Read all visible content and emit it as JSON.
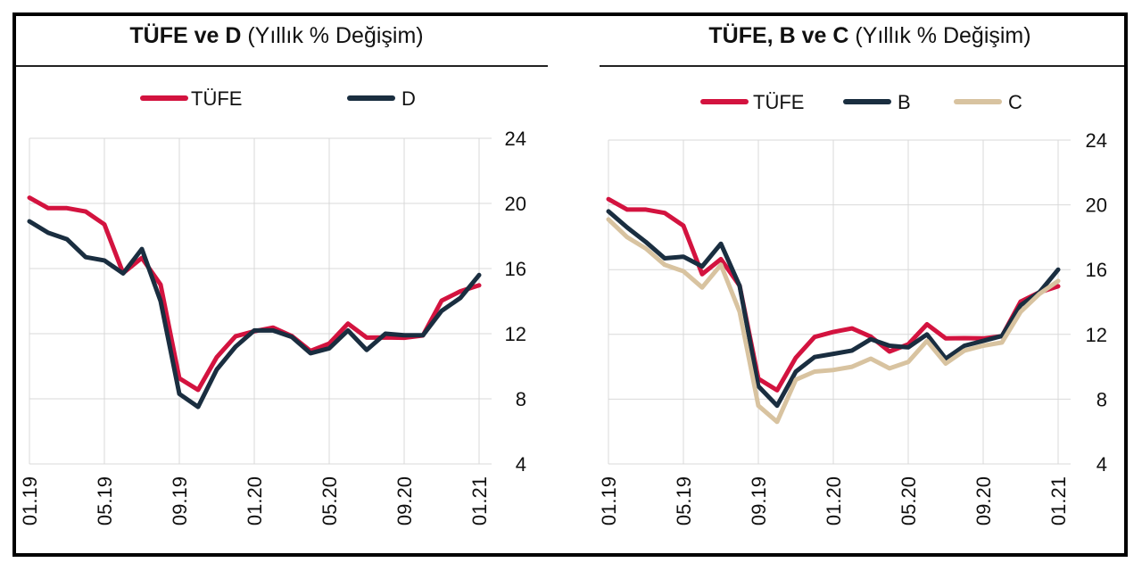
{
  "colors": {
    "tufe": "#d3133f",
    "dark": "#1a2e40",
    "beige": "#d8c3a0",
    "grid": "#d9d9d9"
  },
  "chart_data": [
    {
      "type": "line",
      "title_bold": "TÜFE ve D",
      "title_rest": "(Yıllık % Değişim)",
      "xlabel": "",
      "ylabel": "",
      "ylim": [
        4,
        24
      ],
      "yticks": [
        4,
        8,
        12,
        16,
        20,
        24
      ],
      "x_tick_labels": [
        "01.19",
        "05.19",
        "09.19",
        "01.20",
        "05.20",
        "09.20",
        "01.21"
      ],
      "grid": true,
      "legend_position": "top",
      "series": [
        {
          "name": "TÜFE",
          "color_key": "tufe",
          "values": [
            20.35,
            19.71,
            19.71,
            19.5,
            18.71,
            15.72,
            16.65,
            15.01,
            9.26,
            8.55,
            10.56,
            11.84,
            12.15,
            12.37,
            11.86,
            10.94,
            11.39,
            12.62,
            11.76,
            11.77,
            11.75,
            11.89,
            14.03,
            14.6,
            14.97
          ]
        },
        {
          "name": "D",
          "color_key": "dark",
          "values": [
            18.9,
            18.2,
            17.8,
            16.7,
            16.5,
            15.7,
            17.2,
            14.0,
            8.3,
            7.5,
            9.8,
            11.2,
            12.2,
            12.2,
            11.8,
            10.8,
            11.1,
            12.2,
            11.0,
            12.0,
            11.9,
            11.9,
            13.4,
            14.2,
            15.6
          ]
        }
      ]
    },
    {
      "type": "line",
      "title_bold": "TÜFE, B ve C",
      "title_rest": "(Yıllık % Değişim)",
      "xlabel": "",
      "ylabel": "",
      "ylim": [
        4,
        24
      ],
      "yticks": [
        4,
        8,
        12,
        16,
        20,
        24
      ],
      "x_tick_labels": [
        "01.19",
        "05.19",
        "09.19",
        "01.20",
        "05.20",
        "09.20",
        "01.21"
      ],
      "grid": true,
      "legend_position": "top",
      "series": [
        {
          "name": "TÜFE",
          "color_key": "tufe",
          "values": [
            20.35,
            19.71,
            19.71,
            19.5,
            18.71,
            15.72,
            16.65,
            15.01,
            9.26,
            8.55,
            10.56,
            11.84,
            12.15,
            12.37,
            11.86,
            10.94,
            11.39,
            12.62,
            11.76,
            11.77,
            11.75,
            11.89,
            14.03,
            14.6,
            14.97
          ]
        },
        {
          "name": "B",
          "color_key": "dark",
          "values": [
            19.6,
            18.6,
            17.7,
            16.7,
            16.8,
            16.2,
            17.6,
            15.0,
            8.8,
            7.6,
            9.7,
            10.6,
            10.8,
            11.0,
            11.7,
            11.3,
            11.2,
            12.0,
            10.5,
            11.3,
            11.6,
            11.9,
            13.8,
            14.6,
            16.0
          ]
        },
        {
          "name": "C",
          "color_key": "beige",
          "values": [
            19.1,
            18.0,
            17.3,
            16.3,
            15.9,
            14.9,
            16.3,
            13.4,
            7.6,
            6.6,
            9.2,
            9.7,
            9.8,
            10.0,
            10.5,
            9.9,
            10.3,
            11.6,
            10.2,
            11.0,
            11.3,
            11.5,
            13.4,
            14.5,
            15.3
          ]
        }
      ]
    }
  ]
}
